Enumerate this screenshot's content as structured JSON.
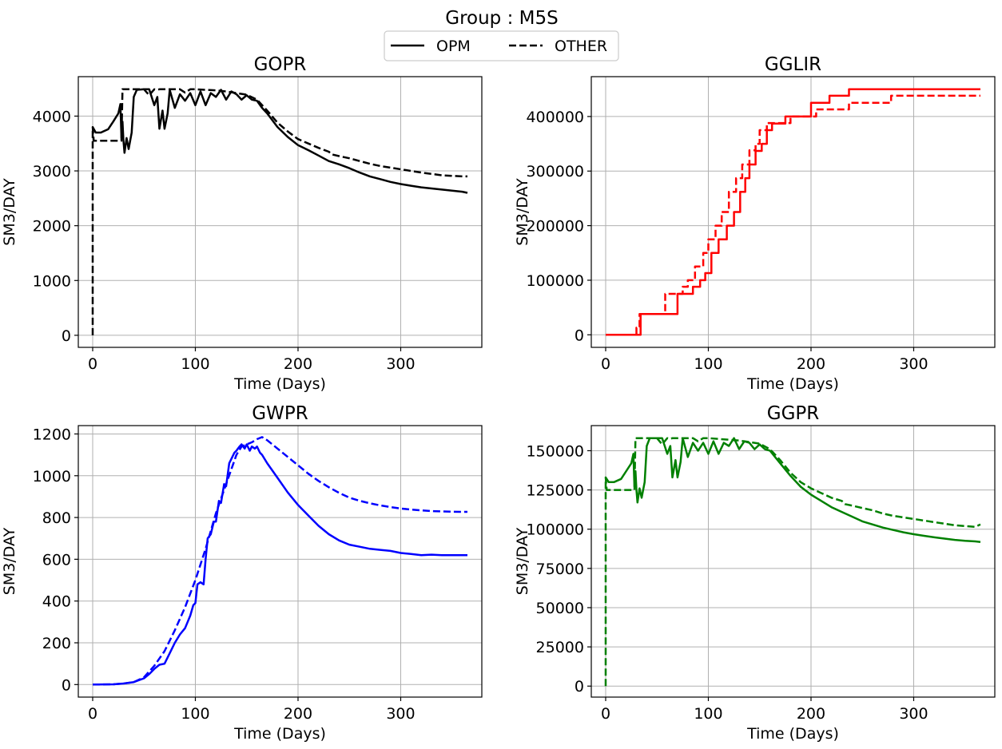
{
  "figure": {
    "suptitle": "Group : M5S",
    "legend": {
      "placement": "top-center",
      "entries": [
        {
          "label": "OPM",
          "linestyle": "solid"
        },
        {
          "label": "OTHER",
          "linestyle": "dashed"
        }
      ]
    }
  },
  "chart_data": [
    {
      "type": "line",
      "title": "GOPR",
      "xlabel": "Time (Days)",
      "ylabel": "SM3/DAY",
      "xlim": [
        -14,
        379
      ],
      "ylim": [
        -220,
        4720
      ],
      "xticks": [
        0,
        100,
        200,
        300
      ],
      "yticks": [
        0,
        1000,
        2000,
        3000,
        4000
      ],
      "yticklabels": [
        "0",
        "1000",
        "2000",
        "3000",
        "4000"
      ],
      "grid": true,
      "color": "#000000",
      "series": [
        {
          "name": "OPM",
          "linestyle": "solid",
          "x": [
            0,
            3,
            8,
            15,
            20,
            25,
            27,
            28,
            29,
            30,
            31,
            33,
            35,
            38,
            40,
            43,
            50,
            55,
            60,
            63,
            65,
            68,
            70,
            73,
            75,
            80,
            85,
            90,
            95,
            100,
            105,
            110,
            115,
            120,
            125,
            130,
            135,
            140,
            145,
            150,
            155,
            160,
            165,
            170,
            180,
            190,
            200,
            210,
            220,
            230,
            240,
            250,
            260,
            270,
            280,
            290,
            300,
            310,
            320,
            330,
            340,
            350,
            360,
            365
          ],
          "y": [
            3800,
            3700,
            3700,
            3760,
            3900,
            4050,
            4220,
            3600,
            3900,
            3550,
            3330,
            3600,
            3400,
            3700,
            4350,
            4480,
            4490,
            4490,
            4200,
            4350,
            3770,
            4100,
            3770,
            4050,
            4480,
            4150,
            4400,
            4280,
            4420,
            4200,
            4450,
            4200,
            4420,
            4350,
            4480,
            4300,
            4450,
            4400,
            4300,
            4380,
            4300,
            4280,
            4150,
            4050,
            3800,
            3620,
            3470,
            3380,
            3280,
            3180,
            3120,
            3050,
            2970,
            2900,
            2850,
            2800,
            2760,
            2730,
            2700,
            2680,
            2660,
            2640,
            2620,
            2600
          ]
        },
        {
          "name": "OTHER",
          "linestyle": "dashed",
          "x": [
            0,
            0,
            1,
            28,
            29,
            30,
            45,
            50,
            55,
            60,
            63,
            65,
            70,
            75,
            80,
            85,
            90,
            95,
            100,
            110,
            120,
            130,
            140,
            150,
            160,
            170,
            180,
            190,
            200,
            210,
            220,
            230,
            233,
            240,
            250,
            260,
            270,
            280,
            300,
            320,
            340,
            360,
            365
          ],
          "y": [
            0,
            3800,
            3550,
            3550,
            4490,
            4490,
            4490,
            4490,
            4380,
            4490,
            4480,
            4490,
            4490,
            4490,
            4490,
            4490,
            4430,
            4490,
            4490,
            4480,
            4470,
            4450,
            4420,
            4390,
            4300,
            4100,
            3880,
            3720,
            3580,
            3500,
            3420,
            3350,
            3300,
            3270,
            3230,
            3180,
            3130,
            3090,
            3030,
            2970,
            2920,
            2900,
            2900
          ]
        }
      ]
    },
    {
      "type": "line",
      "title": "GGLIR",
      "xlabel": "Time (Days)",
      "ylabel": "SM3/DAY",
      "xlim": [
        -14,
        379
      ],
      "ylim": [
        -23000,
        473000
      ],
      "xticks": [
        0,
        100,
        200,
        300
      ],
      "yticks": [
        0,
        100000,
        200000,
        300000,
        400000
      ],
      "yticklabels": [
        "0",
        "100000",
        "200000",
        "300000",
        "400000"
      ],
      "grid": true,
      "color": "#ff0000",
      "series": [
        {
          "name": "OPM",
          "linestyle": "solid",
          "x": [
            0,
            34,
            34,
            70,
            70,
            85,
            85,
            92,
            92,
            97,
            97,
            103,
            103,
            110,
            110,
            118,
            118,
            125,
            125,
            131,
            131,
            136,
            136,
            140,
            140,
            146,
            146,
            152,
            152,
            157,
            157,
            162,
            162,
            175,
            175,
            200,
            200,
            218,
            218,
            237,
            237,
            365
          ],
          "y": [
            0,
            0,
            38000,
            38000,
            75000,
            75000,
            88000,
            88000,
            100000,
            100000,
            113000,
            113000,
            150000,
            150000,
            175000,
            175000,
            200000,
            200000,
            225000,
            225000,
            262000,
            262000,
            287000,
            287000,
            312000,
            312000,
            337000,
            337000,
            350000,
            350000,
            375000,
            375000,
            387000,
            387000,
            400000,
            400000,
            425000,
            425000,
            438000,
            438000,
            450000,
            450000
          ]
        },
        {
          "name": "OTHER",
          "linestyle": "dashed",
          "x": [
            0,
            30,
            30,
            33,
            33,
            58,
            58,
            75,
            75,
            80,
            80,
            87,
            87,
            95,
            95,
            100,
            100,
            107,
            107,
            113,
            113,
            120,
            120,
            127,
            127,
            133,
            133,
            140,
            140,
            146,
            146,
            150,
            150,
            157,
            157,
            180,
            180,
            205,
            205,
            237,
            237,
            278,
            278,
            365
          ],
          "y": [
            0,
            0,
            13000,
            13000,
            38000,
            38000,
            75000,
            75000,
            88000,
            88000,
            100000,
            100000,
            125000,
            125000,
            150000,
            150000,
            175000,
            175000,
            200000,
            200000,
            225000,
            225000,
            262000,
            262000,
            287000,
            287000,
            312000,
            312000,
            338000,
            338000,
            350000,
            350000,
            375000,
            375000,
            388000,
            388000,
            400000,
            400000,
            413000,
            413000,
            425000,
            425000,
            438000,
            438000
          ]
        }
      ]
    },
    {
      "type": "line",
      "title": "GWPR",
      "xlabel": "Time (Days)",
      "ylabel": "SM3/DAY",
      "xlim": [
        -14,
        379
      ],
      "ylim": [
        -60,
        1240
      ],
      "xticks": [
        0,
        100,
        200,
        300
      ],
      "yticks": [
        0,
        200,
        400,
        600,
        800,
        1000,
        1200
      ],
      "yticklabels": [
        "0",
        "200",
        "400",
        "600",
        "800",
        "1000",
        "1200"
      ],
      "grid": true,
      "color": "#0000ff",
      "series": [
        {
          "name": "OPM",
          "linestyle": "solid",
          "x": [
            0,
            20,
            30,
            40,
            50,
            55,
            60,
            65,
            70,
            75,
            80,
            85,
            90,
            95,
            98,
            100,
            102,
            105,
            108,
            110,
            112,
            115,
            118,
            120,
            123,
            125,
            128,
            130,
            133,
            135,
            138,
            140,
            143,
            145,
            148,
            150,
            153,
            155,
            158,
            160,
            163,
            165,
            170,
            180,
            190,
            200,
            210,
            220,
            230,
            240,
            250,
            260,
            270,
            280,
            290,
            300,
            310,
            320,
            330,
            340,
            350,
            360,
            365
          ],
          "y": [
            0,
            1,
            5,
            12,
            30,
            50,
            75,
            95,
            100,
            150,
            200,
            240,
            270,
            330,
            380,
            390,
            480,
            490,
            480,
            600,
            700,
            720,
            780,
            780,
            880,
            870,
            960,
            950,
            1060,
            1080,
            1110,
            1120,
            1140,
            1150,
            1130,
            1150,
            1120,
            1140,
            1130,
            1140,
            1110,
            1100,
            1060,
            990,
            920,
            860,
            810,
            760,
            720,
            690,
            670,
            660,
            650,
            645,
            640,
            630,
            625,
            620,
            622,
            620,
            620,
            620,
            620
          ]
        },
        {
          "name": "OTHER",
          "linestyle": "dashed",
          "x": [
            0,
            20,
            30,
            40,
            50,
            60,
            70,
            80,
            90,
            100,
            110,
            120,
            130,
            140,
            145,
            150,
            155,
            160,
            165,
            170,
            180,
            190,
            200,
            210,
            220,
            230,
            240,
            250,
            260,
            270,
            280,
            290,
            300,
            310,
            320,
            330,
            340,
            350,
            360,
            365
          ],
          "y": [
            0,
            1,
            5,
            12,
            35,
            90,
            160,
            260,
            370,
            500,
            650,
            820,
            960,
            1100,
            1140,
            1150,
            1160,
            1175,
            1185,
            1170,
            1130,
            1090,
            1050,
            1010,
            975,
            945,
            918,
            895,
            880,
            868,
            858,
            850,
            843,
            838,
            834,
            831,
            829,
            828,
            827,
            827
          ]
        }
      ]
    },
    {
      "type": "line",
      "title": "GGPR",
      "xlabel": "Time (Days)",
      "ylabel": "SM3/DAY",
      "xlim": [
        -14,
        379
      ],
      "ylim": [
        -7000,
        166000
      ],
      "xticks": [
        0,
        100,
        200,
        300
      ],
      "yticks": [
        0,
        25000,
        50000,
        75000,
        100000,
        125000,
        150000
      ],
      "yticklabels": [
        "0",
        "25000",
        "50000",
        "75000",
        "100000",
        "125000",
        "150000"
      ],
      "grid": true,
      "color": "#008000",
      "series": [
        {
          "name": "OPM",
          "linestyle": "solid",
          "x": [
            0,
            3,
            8,
            15,
            20,
            25,
            27,
            28,
            29,
            30,
            31,
            33,
            35,
            38,
            40,
            43,
            50,
            55,
            60,
            63,
            65,
            68,
            70,
            73,
            75,
            80,
            85,
            90,
            95,
            100,
            105,
            110,
            115,
            120,
            125,
            130,
            135,
            140,
            145,
            150,
            155,
            160,
            165,
            170,
            180,
            190,
            200,
            210,
            220,
            230,
            240,
            250,
            260,
            270,
            280,
            290,
            300,
            310,
            320,
            330,
            340,
            350,
            360,
            365
          ],
          "y": [
            133000,
            130000,
            130000,
            132000,
            137000,
            142000,
            148000,
            127000,
            137000,
            125000,
            117000,
            126000,
            120000,
            130000,
            153000,
            158000,
            158000,
            158000,
            148000,
            153000,
            133000,
            144000,
            133000,
            143000,
            158000,
            146000,
            155000,
            150000,
            155000,
            148000,
            156000,
            148000,
            155000,
            153000,
            158000,
            151000,
            156000,
            155000,
            151000,
            154000,
            151000,
            150000,
            146000,
            142000,
            134000,
            127000,
            122000,
            118000,
            114000,
            111000,
            108000,
            105000,
            103000,
            101000,
            99500,
            98000,
            96800,
            95800,
            94800,
            94000,
            93200,
            92600,
            92200,
            91800
          ]
        },
        {
          "name": "OTHER",
          "linestyle": "dashed",
          "x": [
            0,
            0,
            1,
            28,
            29,
            30,
            45,
            50,
            55,
            60,
            63,
            65,
            70,
            75,
            80,
            85,
            90,
            95,
            100,
            110,
            120,
            130,
            140,
            150,
            160,
            170,
            180,
            190,
            200,
            210,
            220,
            230,
            233,
            240,
            250,
            260,
            270,
            280,
            300,
            320,
            340,
            360,
            365
          ],
          "y": [
            0,
            133000,
            125000,
            125000,
            158000,
            158000,
            158000,
            158000,
            154000,
            158000,
            157500,
            158000,
            158000,
            158000,
            158000,
            158000,
            156000,
            158000,
            158000,
            157500,
            157000,
            156500,
            155500,
            154500,
            151000,
            144000,
            136000,
            130000,
            126000,
            123000,
            120000,
            118000,
            116000,
            115000,
            113500,
            112000,
            110000,
            108500,
            106500,
            104500,
            102500,
            101500,
            103000
          ]
        }
      ]
    }
  ]
}
